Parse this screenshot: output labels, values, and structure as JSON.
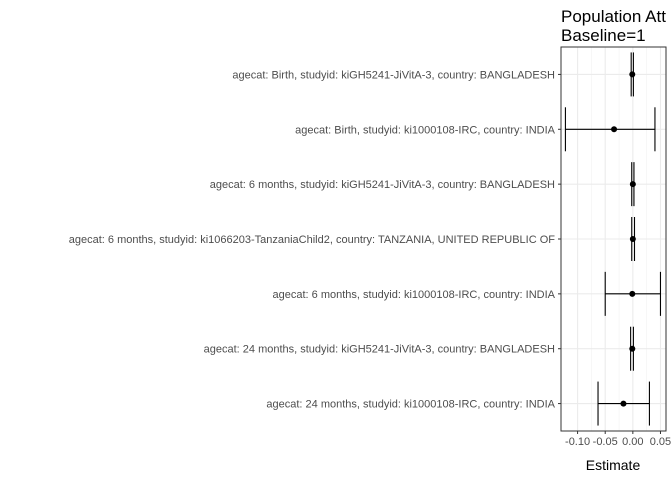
{
  "chart_data": {
    "type": "forest",
    "title": "Population Att",
    "subtitle": "Baseline=1",
    "xlabel": "Estimate",
    "ylabel": "",
    "xlim": [
      -0.13,
      0.06
    ],
    "xticks": [
      -0.1,
      -0.05,
      0.0,
      0.05
    ],
    "xtick_labels": [
      "-0.10",
      "-0.05",
      "0.00",
      "0.05"
    ],
    "grid": true,
    "legend": "none",
    "rows": [
      {
        "label": "agecat: Birth, studyid: kiGH5241-JiVitA-3, country: BANGLADESH",
        "estimate": -0.001,
        "lower": -0.003,
        "upper": 0.001
      },
      {
        "label": "agecat: Birth, studyid: ki1000108-IRC, country: INDIA",
        "estimate": -0.034,
        "lower": -0.122,
        "upper": 0.04
      },
      {
        "label": "agecat: 6 months, studyid: kiGH5241-JiVitA-3, country: BANGLADESH",
        "estimate": 0.0,
        "lower": -0.002,
        "upper": 0.002
      },
      {
        "label": "agecat: 6 months, studyid: ki1066203-TanzaniaChild2, country: TANZANIA, UNITED REPUBLIC OF",
        "estimate": 0.0,
        "lower": -0.002,
        "upper": 0.003
      },
      {
        "label": "agecat: 6 months, studyid: ki1000108-IRC, country: INDIA",
        "estimate": -0.001,
        "lower": -0.05,
        "upper": 0.05
      },
      {
        "label": "agecat: 24 months, studyid: kiGH5241-JiVitA-3, country: BANGLADESH",
        "estimate": -0.001,
        "lower": -0.004,
        "upper": 0.001
      },
      {
        "label": "agecat: 24 months, studyid: ki1000108-IRC, country: INDIA",
        "estimate": -0.017,
        "lower": -0.063,
        "upper": 0.03
      }
    ]
  }
}
